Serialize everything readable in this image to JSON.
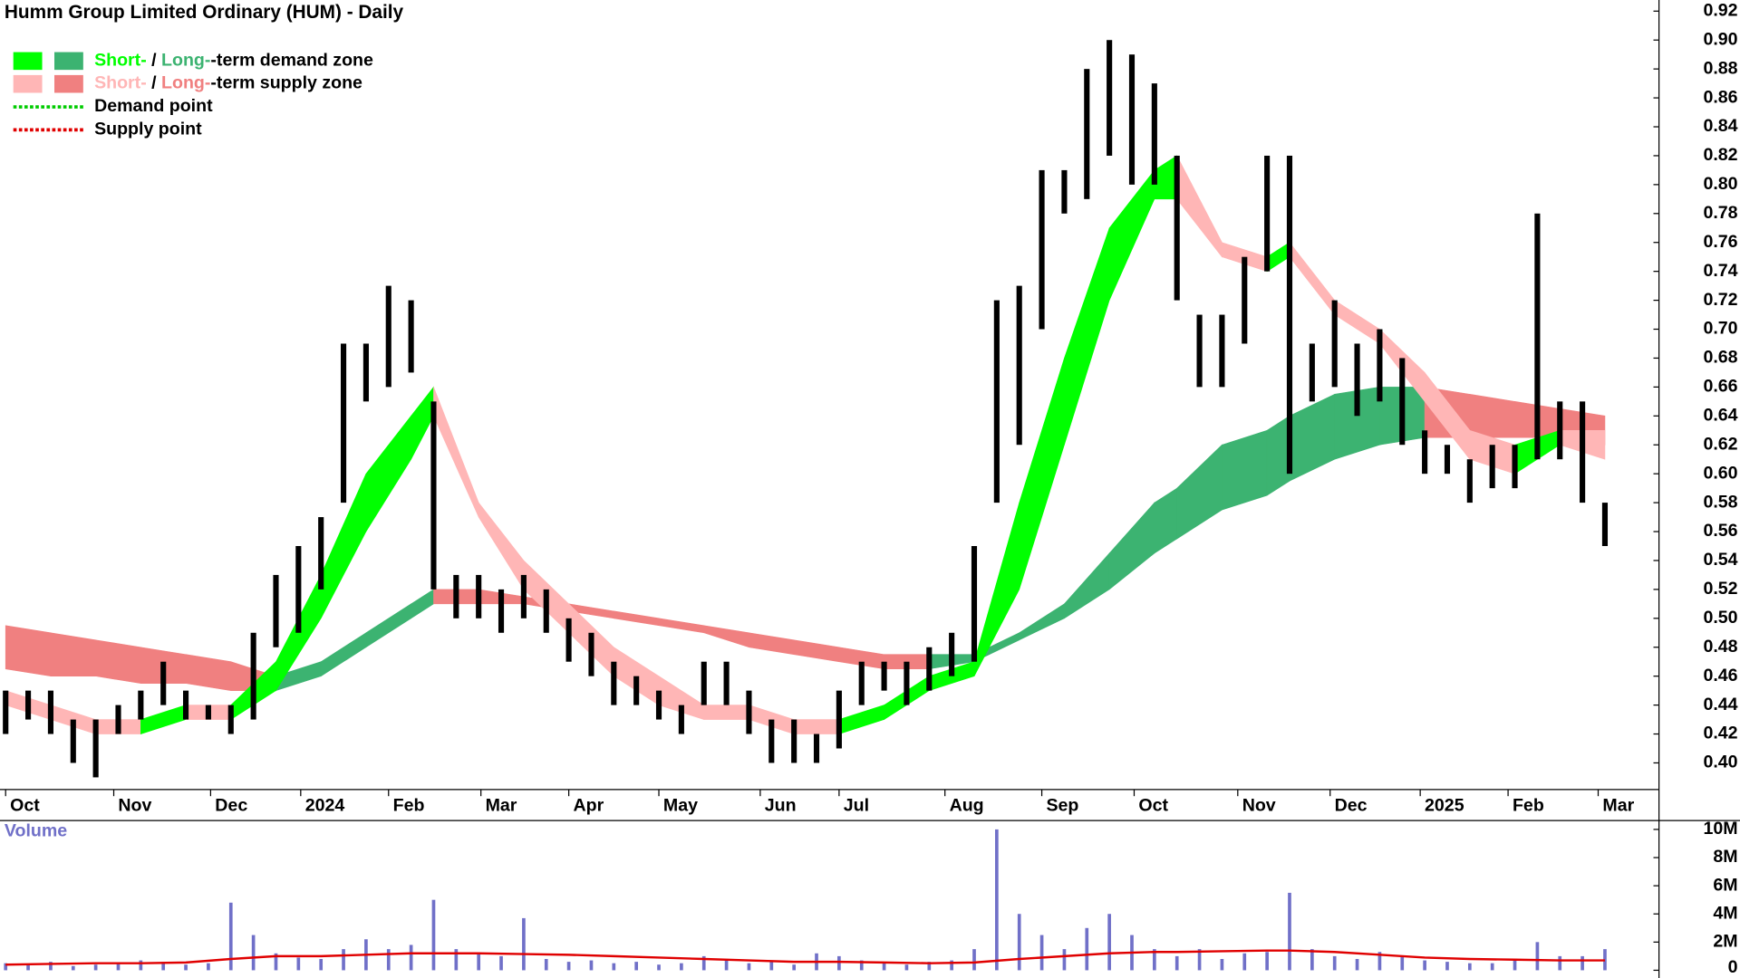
{
  "chart_data": [
    {
      "type": "range-bar",
      "title": "Humm Group Limited Ordinary (HUM) - Daily",
      "x": [
        0,
        1,
        2,
        3,
        4,
        5,
        6,
        7,
        8,
        9,
        10,
        11,
        12,
        13,
        14,
        15,
        16,
        17,
        18,
        19,
        20,
        21,
        22,
        23,
        24,
        25,
        26,
        27,
        28,
        29,
        30,
        31,
        32,
        33,
        34,
        35,
        36,
        37,
        38,
        39,
        40,
        41,
        42,
        43,
        44,
        45,
        46,
        47,
        48,
        49,
        50,
        51,
        52,
        53,
        54,
        55,
        56,
        57,
        58,
        59,
        60,
        61,
        62,
        63,
        64,
        65,
        66,
        67,
        68,
        69,
        70,
        71
      ],
      "highs": [
        0.45,
        0.45,
        0.45,
        0.43,
        0.43,
        0.44,
        0.45,
        0.47,
        0.45,
        0.44,
        0.44,
        0.49,
        0.53,
        0.55,
        0.57,
        0.69,
        0.69,
        0.73,
        0.72,
        0.65,
        0.53,
        0.53,
        0.52,
        0.53,
        0.52,
        0.5,
        0.49,
        0.47,
        0.46,
        0.45,
        0.44,
        0.47,
        0.47,
        0.45,
        0.43,
        0.43,
        0.42,
        0.45,
        0.47,
        0.47,
        0.47,
        0.48,
        0.49,
        0.55,
        0.72,
        0.73,
        0.81,
        0.81,
        0.88,
        0.9,
        0.89,
        0.87,
        0.82,
        0.71,
        0.71,
        0.75,
        0.82,
        0.82,
        0.69,
        0.72,
        0.69,
        0.7,
        0.68,
        0.63,
        0.62,
        0.61,
        0.62,
        0.62,
        0.78,
        0.65,
        0.65,
        0.58
      ],
      "lows": [
        0.42,
        0.43,
        0.42,
        0.4,
        0.39,
        0.42,
        0.43,
        0.44,
        0.43,
        0.43,
        0.42,
        0.43,
        0.48,
        0.49,
        0.52,
        0.58,
        0.65,
        0.66,
        0.67,
        0.52,
        0.5,
        0.5,
        0.49,
        0.5,
        0.49,
        0.47,
        0.46,
        0.44,
        0.44,
        0.43,
        0.42,
        0.44,
        0.44,
        0.42,
        0.4,
        0.4,
        0.4,
        0.41,
        0.44,
        0.45,
        0.44,
        0.45,
        0.46,
        0.47,
        0.58,
        0.62,
        0.7,
        0.78,
        0.79,
        0.82,
        0.8,
        0.8,
        0.72,
        0.66,
        0.66,
        0.69,
        0.74,
        0.6,
        0.65,
        0.66,
        0.64,
        0.65,
        0.62,
        0.6,
        0.6,
        0.58,
        0.59,
        0.59,
        0.61,
        0.61,
        0.58,
        0.55
      ],
      "bar_color": "#000000",
      "short_zone": {
        "x": [
          0,
          2,
          4,
          6,
          8,
          10,
          12,
          14,
          16,
          18,
          19,
          21,
          23,
          25,
          27,
          29,
          31,
          33,
          35,
          37,
          39,
          41,
          43,
          45,
          47,
          49,
          51,
          52,
          54,
          56,
          57,
          59,
          61,
          63,
          65,
          67,
          69,
          71
        ],
        "upper": [
          0.45,
          0.44,
          0.43,
          0.43,
          0.44,
          0.44,
          0.47,
          0.53,
          0.6,
          0.64,
          0.66,
          0.58,
          0.54,
          0.51,
          0.48,
          0.46,
          0.44,
          0.44,
          0.43,
          0.43,
          0.44,
          0.46,
          0.47,
          0.58,
          0.68,
          0.77,
          0.81,
          0.82,
          0.76,
          0.75,
          0.76,
          0.72,
          0.7,
          0.67,
          0.63,
          0.62,
          0.63,
          0.63
        ],
        "lower": [
          0.44,
          0.43,
          0.42,
          0.42,
          0.43,
          0.43,
          0.45,
          0.5,
          0.56,
          0.61,
          0.64,
          0.57,
          0.52,
          0.49,
          0.46,
          0.44,
          0.43,
          0.43,
          0.42,
          0.42,
          0.43,
          0.45,
          0.46,
          0.52,
          0.62,
          0.72,
          0.79,
          0.79,
          0.75,
          0.74,
          0.75,
          0.71,
          0.69,
          0.65,
          0.61,
          0.6,
          0.62,
          0.61
        ],
        "demand_color": "#00ff00",
        "supply_color": "#ffb6b6"
      },
      "long_zone": {
        "x": [
          0,
          2,
          4,
          6,
          8,
          10,
          12,
          14,
          16,
          18,
          19,
          21,
          23,
          25,
          27,
          29,
          31,
          33,
          35,
          37,
          39,
          41,
          43,
          45,
          47,
          49,
          51,
          52,
          54,
          56,
          57,
          59,
          61,
          63,
          65,
          67,
          69,
          71
        ],
        "upper": [
          0.495,
          0.49,
          0.485,
          0.48,
          0.475,
          0.47,
          0.46,
          0.47,
          0.49,
          0.51,
          0.52,
          0.52,
          0.515,
          0.51,
          0.505,
          0.5,
          0.495,
          0.49,
          0.485,
          0.48,
          0.475,
          0.475,
          0.475,
          0.49,
          0.51,
          0.545,
          0.58,
          0.59,
          0.62,
          0.63,
          0.64,
          0.655,
          0.66,
          0.66,
          0.655,
          0.65,
          0.645,
          0.64
        ],
        "lower": [
          0.465,
          0.46,
          0.46,
          0.455,
          0.455,
          0.45,
          0.45,
          0.46,
          0.48,
          0.5,
          0.51,
          0.51,
          0.51,
          0.505,
          0.5,
          0.495,
          0.49,
          0.48,
          0.475,
          0.47,
          0.465,
          0.465,
          0.47,
          0.485,
          0.5,
          0.52,
          0.545,
          0.555,
          0.575,
          0.585,
          0.595,
          0.61,
          0.62,
          0.625,
          0.625,
          0.625,
          0.625,
          0.62
        ],
        "demand_color": "#3cb371",
        "supply_color": "#f08080"
      },
      "xlim": [
        -0.25,
        73.4
      ],
      "xticks": [
        {
          "value": 0,
          "label": "Oct"
        },
        {
          "value": 4.8,
          "label": "Nov"
        },
        {
          "value": 9.1,
          "label": "Dec"
        },
        {
          "value": 13.1,
          "label": "2024"
        },
        {
          "value": 17.0,
          "label": "Feb"
        },
        {
          "value": 21.1,
          "label": "Mar"
        },
        {
          "value": 25.0,
          "label": "Apr"
        },
        {
          "value": 29.0,
          "label": "May"
        },
        {
          "value": 33.5,
          "label": "Jun"
        },
        {
          "value": 37.0,
          "label": "Jul"
        },
        {
          "value": 41.7,
          "label": "Aug"
        },
        {
          "value": 46.0,
          "label": "Sep"
        },
        {
          "value": 50.1,
          "label": "Oct"
        },
        {
          "value": 54.7,
          "label": "Nov"
        },
        {
          "value": 58.8,
          "label": "Dec"
        },
        {
          "value": 62.8,
          "label": "2025"
        },
        {
          "value": 66.7,
          "label": "Feb"
        },
        {
          "value": 70.7,
          "label": "Mar"
        }
      ],
      "ylim": [
        0.3816,
        0.9277
      ],
      "yticks": [
        {
          "value": 0.4,
          "label": "0.40"
        },
        {
          "value": 0.42,
          "label": "0.42"
        },
        {
          "value": 0.44,
          "label": "0.44"
        },
        {
          "value": 0.46,
          "label": "0.46"
        },
        {
          "value": 0.48,
          "label": "0.48"
        },
        {
          "value": 0.5,
          "label": "0.50"
        },
        {
          "value": 0.52,
          "label": "0.52"
        },
        {
          "value": 0.54,
          "label": "0.54"
        },
        {
          "value": 0.56,
          "label": "0.56"
        },
        {
          "value": 0.58,
          "label": "0.58"
        },
        {
          "value": 0.6,
          "label": "0.60"
        },
        {
          "value": 0.62,
          "label": "0.62"
        },
        {
          "value": 0.64,
          "label": "0.64"
        },
        {
          "value": 0.66,
          "label": "0.66"
        },
        {
          "value": 0.68,
          "label": "0.68"
        },
        {
          "value": 0.7,
          "label": "0.70"
        },
        {
          "value": 0.72,
          "label": "0.72"
        },
        {
          "value": 0.74,
          "label": "0.74"
        },
        {
          "value": 0.76,
          "label": "0.76"
        },
        {
          "value": 0.78,
          "label": "0.78"
        },
        {
          "value": 0.8,
          "label": "0.80"
        },
        {
          "value": 0.82,
          "label": "0.82"
        },
        {
          "value": 0.84,
          "label": "0.84"
        },
        {
          "value": 0.86,
          "label": "0.86"
        },
        {
          "value": 0.88,
          "label": "0.88"
        },
        {
          "value": 0.9,
          "label": "0.90"
        },
        {
          "value": 0.92,
          "label": "0.92"
        }
      ],
      "legend": [
        {
          "parts": [
            "Short-",
            " / ",
            "Long-",
            "-term demand zone"
          ],
          "colors": [
            "#00ff00",
            "#3cb371"
          ]
        },
        {
          "parts": [
            "Short-",
            " / ",
            "Long-",
            "-term supply zone"
          ],
          "colors": [
            "#ffb6b6",
            "#f08080"
          ]
        },
        {
          "text": "Demand point",
          "color": "#00cc00"
        },
        {
          "text": "Supply point",
          "color": "#e00000"
        }
      ]
    },
    {
      "type": "bar",
      "title": "Volume",
      "values": [
        500000,
        400000,
        600000,
        300000,
        400000,
        500000,
        700000,
        600000,
        400000,
        500000,
        4800000,
        2500000,
        1200000,
        900000,
        800000,
        1500000,
        2200000,
        1500000,
        1800000,
        5000000,
        1500000,
        1200000,
        1000000,
        3700000,
        800000,
        600000,
        700000,
        500000,
        600000,
        400000,
        500000,
        1000000,
        700000,
        500000,
        600000,
        400000,
        1200000,
        1000000,
        700000,
        500000,
        400000,
        600000,
        700000,
        1500000,
        10000000,
        4000000,
        2500000,
        1500000,
        3000000,
        4000000,
        2500000,
        1500000,
        1000000,
        1500000,
        800000,
        1200000,
        1300000,
        5500000,
        1500000,
        1000000,
        800000,
        1300000,
        1000000,
        700000,
        600000,
        500000,
        500000,
        800000,
        2000000,
        1000000,
        1000000,
        1500000
      ],
      "color": "#7070c8",
      "ma": {
        "x": [
          0,
          2,
          4,
          6,
          8,
          10,
          12,
          14,
          16,
          18,
          19,
          21,
          23,
          25,
          27,
          29,
          31,
          33,
          35,
          37,
          39,
          41,
          43,
          45,
          47,
          49,
          51,
          52,
          54,
          56,
          57,
          59,
          61,
          63,
          65,
          67,
          69,
          71
        ],
        "values": [
          400000,
          450000,
          500000,
          500000,
          550000,
          800000,
          1000000,
          1000000,
          1100000,
          1200000,
          1200000,
          1200000,
          1150000,
          1100000,
          1000000,
          900000,
          800000,
          700000,
          600000,
          600000,
          550000,
          500000,
          550000,
          800000,
          1000000,
          1200000,
          1300000,
          1300000,
          1350000,
          1400000,
          1400000,
          1300000,
          1100000,
          900000,
          800000,
          750000,
          700000,
          700000
        ],
        "color": "#e00000"
      },
      "ylim": [
        -550000,
        10630000
      ],
      "yticks": [
        0,
        {
          "value": 2000000,
          "label": "2M"
        },
        {
          "value": 4000000,
          "label": "4M"
        },
        {
          "value": 6000000,
          "label": "6M"
        },
        {
          "value": 8000000,
          "label": "8M"
        },
        {
          "value": 10000000,
          "label": "10M"
        }
      ]
    }
  ]
}
